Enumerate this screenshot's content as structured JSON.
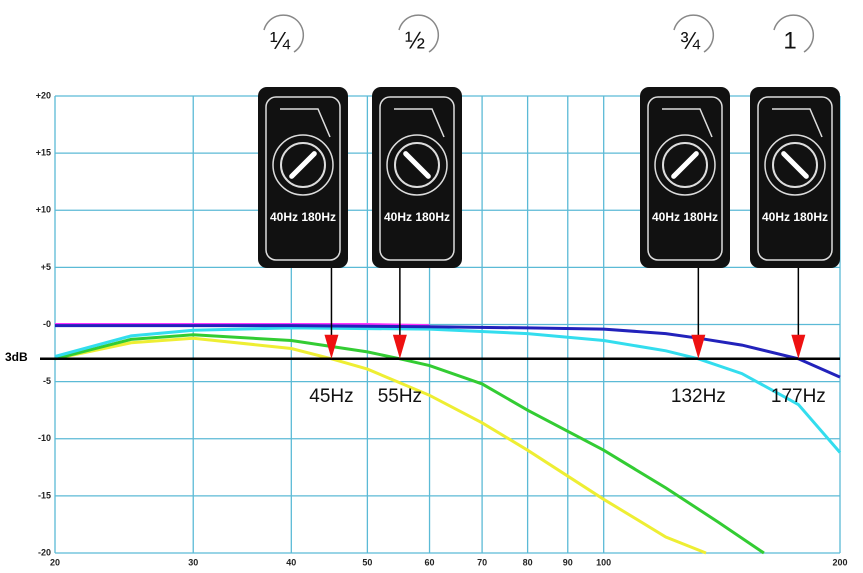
{
  "chart_data": {
    "type": "line",
    "xlim": [
      20,
      200
    ],
    "xscale": "log",
    "xticks": [
      20,
      30,
      40,
      50,
      60,
      70,
      80,
      90,
      100,
      200
    ],
    "ylim": [
      -20,
      20
    ],
    "yticks": [
      {
        "value": 20,
        "label": "+20"
      },
      {
        "value": 15,
        "label": "+15"
      },
      {
        "value": 10,
        "label": "+10"
      },
      {
        "value": 5,
        "label": "+5"
      },
      {
        "value": 0,
        "label": "-0"
      },
      -5,
      -10,
      -15,
      -20
    ],
    "grid": true,
    "grid_color": "#5bbad6",
    "threshold": {
      "value": -3,
      "label": "3dB"
    },
    "knob_label": "40Hz 180Hz",
    "markers": [
      {
        "x": 45,
        "label": "45Hz",
        "turn": "¼"
      },
      {
        "x": 55,
        "label": "55Hz",
        "turn": "½"
      },
      {
        "x": 132,
        "label": "132Hz",
        "turn": "¾"
      },
      {
        "x": 177,
        "label": "177Hz",
        "turn": "1"
      }
    ],
    "series": [
      {
        "color": "#ff33ff",
        "x": [
          20,
          30,
          40,
          50,
          60
        ],
        "values": [
          0,
          0,
          0,
          0,
          -0.1
        ]
      },
      {
        "color": "#eeee33",
        "x": [
          20,
          25,
          30,
          40,
          45,
          50,
          60,
          70,
          80,
          100,
          120,
          135
        ],
        "values": [
          -3,
          -1.6,
          -1.2,
          -2.1,
          -3,
          -3.9,
          -6.2,
          -8.6,
          -11,
          -15.3,
          -18.6,
          -20
        ]
      },
      {
        "color": "#33cc33",
        "x": [
          20,
          25,
          30,
          40,
          50,
          55,
          60,
          70,
          80,
          100,
          120,
          140,
          160
        ],
        "values": [
          -3,
          -1.3,
          -0.9,
          -1.4,
          -2.4,
          -3,
          -3.6,
          -5.2,
          -7.5,
          -11,
          -14.3,
          -17.3,
          -20
        ]
      },
      {
        "color": "#33ddee",
        "x": [
          20,
          25,
          30,
          40,
          60,
          80,
          100,
          120,
          132,
          150,
          177,
          200
        ],
        "values": [
          -2.8,
          -1,
          -0.5,
          -0.3,
          -0.4,
          -0.8,
          -1.4,
          -2.3,
          -3,
          -4.3,
          -7,
          -11.2
        ]
      },
      {
        "color": "#2222bb",
        "x": [
          20,
          40,
          60,
          80,
          100,
          120,
          132,
          150,
          177,
          200
        ],
        "values": [
          -0.1,
          -0.1,
          -0.2,
          -0.3,
          -0.4,
          -0.8,
          -1.2,
          -1.8,
          -3,
          -4.6
        ]
      }
    ]
  }
}
